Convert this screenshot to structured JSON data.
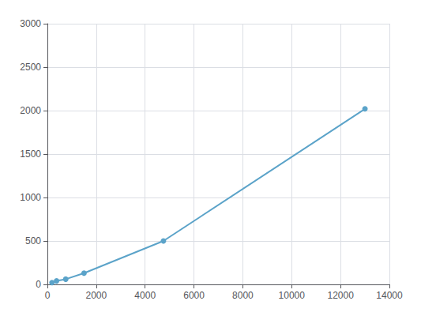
{
  "chart_data": {
    "type": "line",
    "x": [
      187.5,
      375,
      750,
      1500,
      4750,
      13000
    ],
    "values": [
      20,
      40,
      60,
      130,
      500,
      2020
    ],
    "color": "#5ba3c9",
    "marker": "o",
    "xlim": [
      0,
      14000
    ],
    "xticks": [
      0,
      2000,
      4000,
      6000,
      8000,
      10000,
      12000,
      14000
    ],
    "ylim": [
      0,
      3000
    ],
    "yticks": [
      0,
      500,
      1000,
      1500,
      2000,
      2500,
      3000
    ],
    "grid": true
  }
}
